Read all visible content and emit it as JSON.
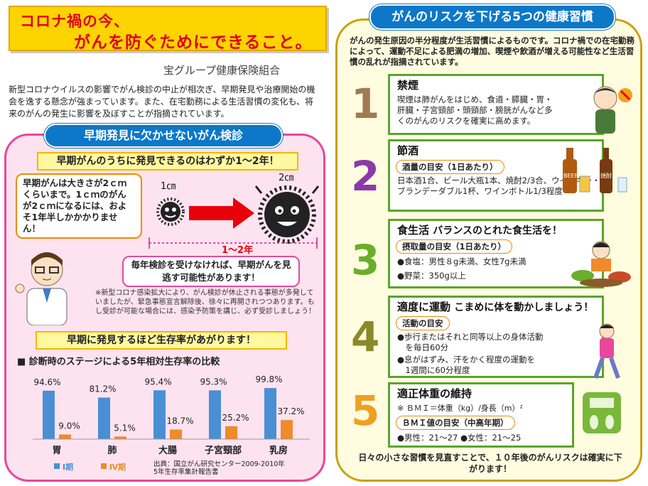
{
  "header": {
    "title_line1": "コロナ禍の今、",
    "title_line2": "がんを防ぐためにできること。",
    "org": "宝グループ健康保険組合",
    "intro": "新型コロナウイルスの影響でがん検診の中止が相次ぎ、早期発見や治療開始の機会を逸する懸念が強まっています。また、在宅勤務による生活習慣の変化も、将来のがんの発生に影響を及ぼすことが指摘されています。"
  },
  "left": {
    "heading": "早期発見に欠かせないがん検診",
    "banner1": "早期がんのうちに発見できるのはわずか1～2年！",
    "bubble": "早期がんは大きさが2ｃｍくらいまで。1ｃｍのがんが2ｃｍになるには、およそ1年半しかかかりません！",
    "label_1cm": "1㎝",
    "label_2cm": "2㎝",
    "label_years": "1～2年",
    "bubble2": "毎年検診を受けなければ、早期がんを見逃す可能性があります！",
    "note": "※新型コロナ感染拡大により、がん検診が休止される事態が多発していましたが、緊急事態宣言解除後、徐々に再開されつつあります。もし受診が可能な場合には、感染予防策を講じ、必ず受診しましょう！",
    "banner2": "早期に発見するほど生存率があがります！",
    "source": "出典：国立がん研究センター2009-2010年\n5年生存率集計報告書"
  },
  "chart_data": {
    "type": "bar",
    "title": "■ 診断時のステージによる5年相対生存率の比較",
    "categories": [
      "胃",
      "肺",
      "大腸",
      "子宮頸部",
      "乳房"
    ],
    "series": [
      {
        "name": "Ⅰ期",
        "values": [
          94.6,
          81.2,
          95.4,
          95.3,
          99.8
        ],
        "color": "#4a8fd4",
        "labels": [
          "94.6%",
          "81.2%",
          "95.4%",
          "95.3%",
          "99.8%"
        ]
      },
      {
        "name": "Ⅳ期",
        "values": [
          9.0,
          5.1,
          18.7,
          25.2,
          37.2
        ],
        "color": "#f08a2a",
        "labels": [
          "9.0%",
          "5.1%",
          "18.7%",
          "25.2%",
          "37.2%"
        ]
      }
    ],
    "ylim": [
      0,
      100
    ],
    "legend": "bottom-left"
  },
  "right": {
    "heading": "がんのリスクを下げる5つの健康習慣",
    "intro": "がんの発生原因の半分程度が生活習慣によるものです。コロナ禍での在宅勤務によって、運動不足による肥満の増加、喫煙や飲酒が増える可能性など生活習慣の乱れが指摘されています。",
    "h1": {
      "num": "1",
      "title": "禁煙",
      "body": "喫煙は肺がんをはじめ、食道・膵臓・胃・肝臓・子宮頸部・頭頸部・膀胱がんなど多くのがんのリスクを確実に高めます。"
    },
    "h2": {
      "num": "2",
      "title": "節酒",
      "tag": "酒量の目安（1日あたり）",
      "body": "日本酒1合、ビール大瓶1本、焼酎2/3合、ウイスキー・ブランデーダブル1杯、ワインボトル1/3程度",
      "beer": "BEER",
      "shochu": "焼酎"
    },
    "h3": {
      "num": "3",
      "title": "食生活",
      "sub": "バランスのとれた食生活を！",
      "tag": "摂取量の目安（1日あたり）",
      "l1": "●食塩：男性８g未満、女性7g未満",
      "l2": "●野菜：350g以上"
    },
    "h4": {
      "num": "4",
      "title": "適度に運動",
      "sub": "こまめに体を動かしましょう！",
      "tag": "活動の目安",
      "l1": "●歩行またはそれと同等以上の身体活動",
      "l1b": "　を毎日60分",
      "l2": "●息がはずみ、汗をかく程度の運動を",
      "l2b": "　1週間に60分程度"
    },
    "h5": {
      "num": "5",
      "title": "適正体重の維持",
      "formula": "※ ＢＭＩ＝体重（kg）/身長（m）²",
      "tag": "ＢＭＩ値の目安（中高年期）",
      "l1": "●男性：21～27 ●女性：21～25"
    },
    "footer": "日々の小さな習慣を見直すことで、１０年後のがんリスクは確実に下がります！"
  }
}
